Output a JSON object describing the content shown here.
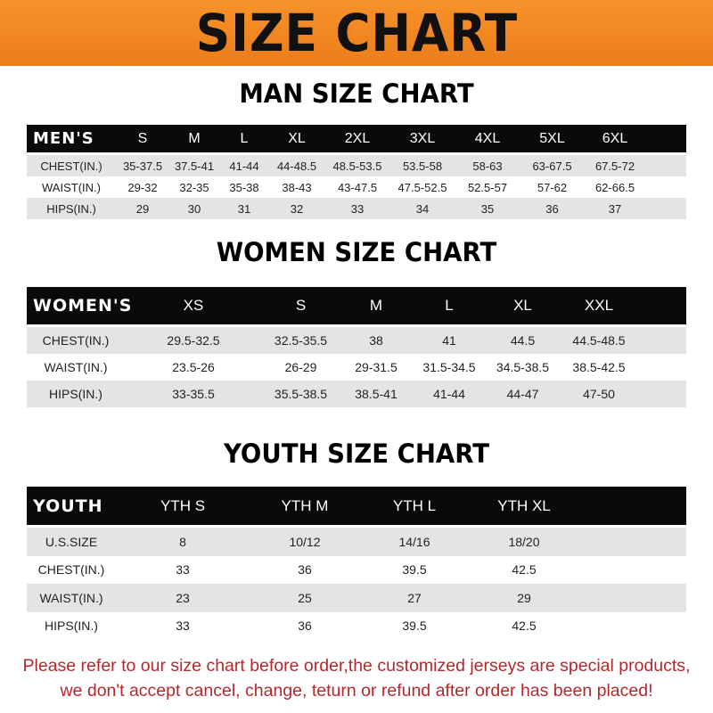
{
  "banner": {
    "title": "SIZE CHART",
    "color": "#f08a24"
  },
  "men": {
    "title": "MAN SIZE CHART",
    "header": [
      "MEN'S",
      "S",
      "M",
      "L",
      "XL",
      "2XL",
      "3XL",
      "4XL",
      "5XL",
      "6XL"
    ],
    "rows": [
      [
        "CHEST(IN.)",
        "35-37.5",
        "37.5-41",
        "41-44",
        "44-48.5",
        "48.5-53.5",
        "53.5-58",
        "58-63",
        "63-67.5",
        "67.5-72"
      ],
      [
        "WAIST(IN.)",
        "29-32",
        "32-35",
        "35-38",
        "38-43",
        "43-47.5",
        "47.5-52.5",
        "52.5-57",
        "57-62",
        "62-66.5"
      ],
      [
        "HIPS(IN.)",
        "29",
        "30",
        "31",
        "32",
        "33",
        "34",
        "35",
        "36",
        "37"
      ]
    ]
  },
  "women": {
    "title": "WOMEN SIZE CHART",
    "header": [
      "WOMEN'S",
      "XS",
      "S",
      "M",
      "L",
      "XL",
      "XXL"
    ],
    "rows": [
      [
        "CHEST(IN.)",
        "29.5-32.5",
        "32.5-35.5",
        "38",
        "41",
        "44.5",
        "44.5-48.5"
      ],
      [
        "WAIST(IN.)",
        "23.5-26",
        "26-29",
        "29-31.5",
        "31.5-34.5",
        "34.5-38.5",
        "38.5-42.5"
      ],
      [
        "HIPS(IN.)",
        "33-35.5",
        "35.5-38.5",
        "38.5-41",
        "41-44",
        "44-47",
        "47-50"
      ]
    ]
  },
  "youth": {
    "title": "YOUTH SIZE CHART",
    "header": [
      "YOUTH",
      "YTH S",
      "YTH M",
      "YTH L",
      "YTH XL"
    ],
    "rows": [
      [
        "U.S.SIZE",
        "8",
        "10/12",
        "14/16",
        "18/20"
      ],
      [
        "CHEST(IN.)",
        "33",
        "36",
        "39.5",
        "42.5"
      ],
      [
        "WAIST(IN.)",
        "23",
        "25",
        "27",
        "29"
      ],
      [
        "HIPS(IN.)",
        "33",
        "36",
        "39.5",
        "42.5"
      ]
    ]
  },
  "note": {
    "line1": "Please refer to our size chart before order,the customized jerseys are special products,",
    "line2": "we don't accept cancel, change, teturn or refund after order has been placed!",
    "color": "#b5272d"
  }
}
